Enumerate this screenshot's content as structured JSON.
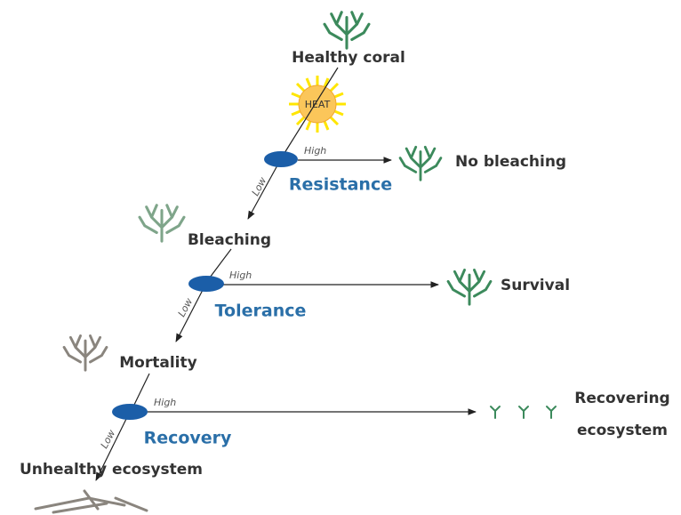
{
  "start": "Healthy coral",
  "heat": "HEAT",
  "stages": [
    {
      "name": "Resistance",
      "high": "High",
      "low": "Low",
      "outcome": [
        "No bleaching"
      ]
    },
    {
      "name": "Tolerance",
      "high": "High",
      "low": "Low",
      "outcome": [
        "Survival"
      ]
    },
    {
      "name": "Recovery",
      "high": "High",
      "low": "Low",
      "outcome": [
        "Recovering",
        "ecosystem"
      ]
    }
  ],
  "states": [
    "Bleaching",
    "Mortality"
  ],
  "end": "Unhealthy ecosystem"
}
